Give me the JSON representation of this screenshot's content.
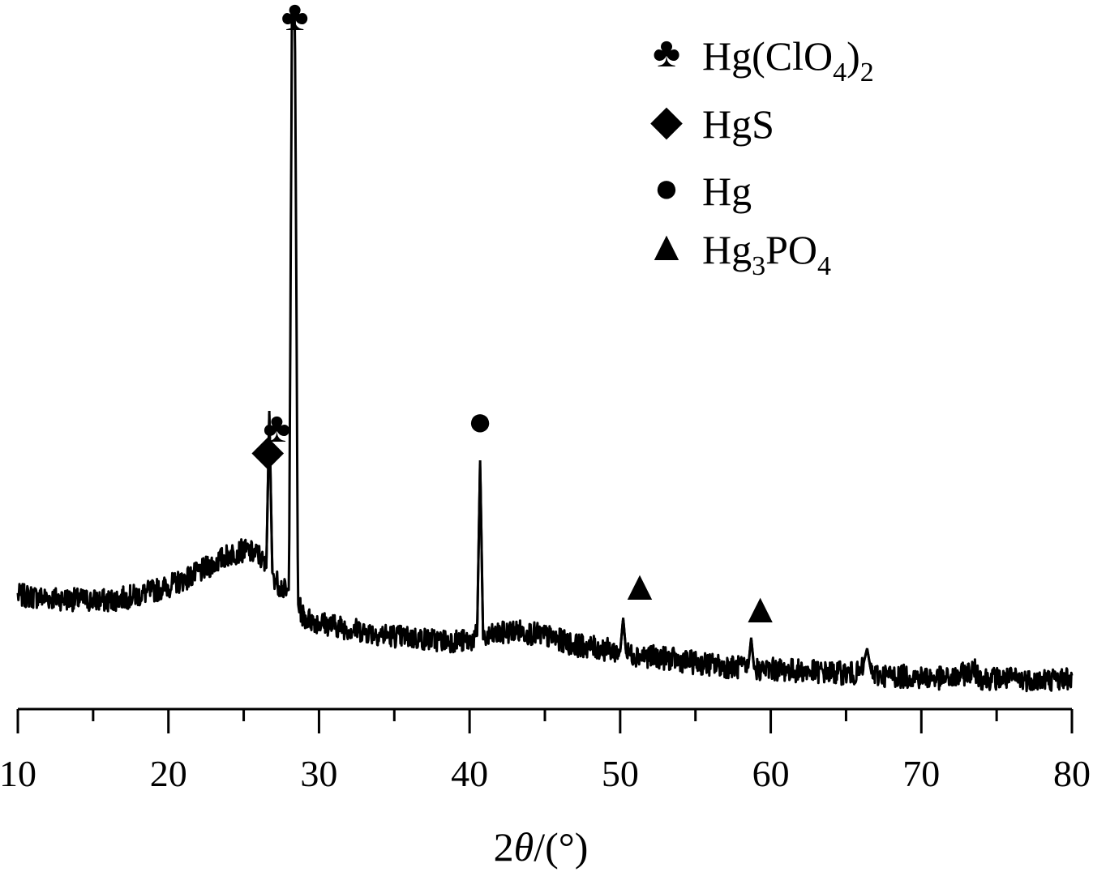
{
  "chart_data": {
    "type": "line",
    "title": "",
    "xlabel_parts": {
      "prefix": "2",
      "symbol": "θ",
      "suffix": "/(°)"
    },
    "ylabel": "",
    "xlim": [
      10,
      80
    ],
    "x_major_ticks": [
      10,
      20,
      30,
      40,
      50,
      60,
      70,
      80
    ],
    "x_minor_ticks": [
      15,
      25,
      35,
      45,
      55,
      65,
      75
    ],
    "y_axis_shown": false,
    "grid": false,
    "legend_placement": "top-right",
    "legend": [
      {
        "marker": "club",
        "glyph": "♣",
        "label": "Hg(ClO",
        "sub1": "4",
        "label_mid": ")",
        "sub2": "2"
      },
      {
        "marker": "diamond",
        "glyph": "◆",
        "label": "HgS"
      },
      {
        "marker": "circle",
        "glyph": "●",
        "label": "Hg"
      },
      {
        "marker": "triangle",
        "glyph": "▲",
        "label": "Hg",
        "sub1": "3",
        "label_mid": "PO",
        "sub2": "4"
      }
    ],
    "series": [
      {
        "style": "noisy XRD pattern, black line",
        "x": [
          10,
          12,
          14,
          16,
          18,
          20,
          22,
          24,
          25,
          26,
          26.5,
          26.7,
          26.9,
          27.2,
          28.0,
          28.2,
          28.4,
          28.6,
          29,
          30,
          32,
          34,
          36,
          38,
          40,
          40.5,
          40.7,
          40.9,
          41.5,
          43,
          45,
          47,
          49,
          50,
          50.2,
          50.4,
          51,
          53,
          55,
          57,
          58.5,
          58.7,
          58.9,
          60,
          62,
          64,
          66,
          66.4,
          66.7,
          67.2,
          70,
          72,
          73.5,
          74,
          76,
          78,
          80
        ],
        "y": [
          9.5,
          9.2,
          9.0,
          8.9,
          9.5,
          10.5,
          12.0,
          14.0,
          14.5,
          14.0,
          12.5,
          30.0,
          12.0,
          11.0,
          9.5,
          73.0,
          74.0,
          8.5,
          7.0,
          6.5,
          5.8,
          5.2,
          4.8,
          4.5,
          4.4,
          5.0,
          24.5,
          4.6,
          5.0,
          5.6,
          5.0,
          4.0,
          3.5,
          3.2,
          7.0,
          3.0,
          2.9,
          2.5,
          2.0,
          1.6,
          1.4,
          4.8,
          1.3,
          1.3,
          1.1,
          0.9,
          0.8,
          3.6,
          0.7,
          0.6,
          0.4,
          0.2,
          1.2,
          0.3,
          0.2,
          0.1,
          0.3
        ]
      }
    ],
    "peak_annotations": [
      {
        "x": 26.6,
        "marker": "diamond",
        "phase": "HgS"
      },
      {
        "x": 27.2,
        "marker": "club",
        "phase": "Hg(ClO4)2"
      },
      {
        "x": 28.4,
        "marker": "club",
        "phase": "Hg(ClO4)2"
      },
      {
        "x": 40.7,
        "marker": "circle",
        "phase": "Hg"
      },
      {
        "x": 51.3,
        "marker": "triangle",
        "phase": "Hg3PO4"
      },
      {
        "x": 59.3,
        "marker": "triangle",
        "phase": "Hg3PO4"
      }
    ]
  }
}
